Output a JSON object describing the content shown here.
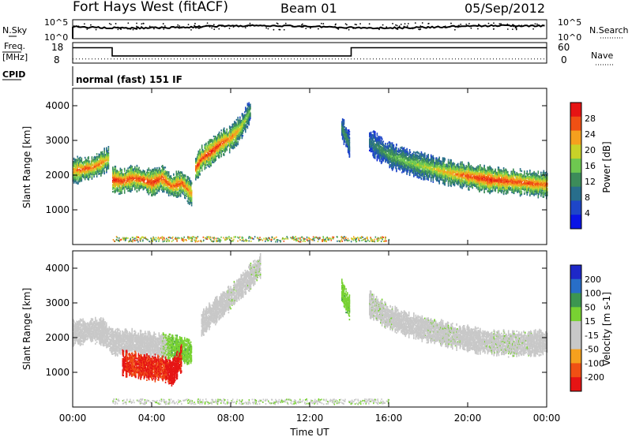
{
  "header": {
    "title": "Fort Hays West (fitACF)",
    "beam": "Beam 01",
    "date": "05/Sep/2012"
  },
  "top_panels": {
    "nsky_label": "N.Sky",
    "nsky_ticks": [
      "10^5",
      "10^0"
    ],
    "nsearch_label": "N.Search",
    "nsearch_ticks": [
      "10^5",
      "10^0"
    ],
    "freq_label_1": "Freq.",
    "freq_label_2": "[MHz]",
    "freq_ticks": [
      "18",
      "8"
    ],
    "nave_label": "Nave",
    "nave_ticks": [
      "60",
      "0"
    ],
    "cpid_label": "CPID",
    "cpid_text": "normal (fast) 151 IF"
  },
  "colors": {
    "power_scale": [
      "#0a14e6",
      "#1e46c8",
      "#286e8c",
      "#3c8c5a",
      "#6ec850",
      "#c8d228",
      "#f5a01e",
      "#f05014",
      "#e61414"
    ],
    "velocity_scale": [
      "#e61414",
      "#f05014",
      "#f5a01e",
      "#c8c8c8",
      "#c8c8c8",
      "#78d232",
      "#3c9650",
      "#286ec8",
      "#1e28c8"
    ]
  },
  "chart_data": [
    {
      "type": "heatmap",
      "panel": "power",
      "ylabel": "Slant Range [km]",
      "ylim": [
        0,
        4500
      ],
      "yticks": [
        "1000",
        "2000",
        "3000",
        "4000"
      ],
      "colorbar": {
        "label": "Power [dB]",
        "ticks": [
          "4",
          "8",
          "12",
          "16",
          "20",
          "24",
          "28"
        ],
        "range": [
          0,
          30
        ]
      },
      "series": [
        {
          "x": [
            0,
            0.5,
            1,
            1.5,
            1.8
          ],
          "y": [
            2150,
            2200,
            2250,
            2400,
            2500
          ],
          "values": [
            22,
            26,
            25,
            24,
            20
          ]
        },
        {
          "x": [
            2,
            2.5,
            3,
            3.5,
            4,
            4.5,
            5,
            5.5,
            6
          ],
          "y": [
            1900,
            1850,
            1950,
            1900,
            1800,
            1950,
            1700,
            1800,
            1500
          ],
          "values": [
            28,
            27,
            26,
            27,
            28,
            26,
            25,
            26,
            22
          ]
        },
        {
          "x": [
            6.2,
            6.5,
            7,
            7.5,
            8,
            8.5,
            9
          ],
          "y": [
            2200,
            2500,
            2700,
            2950,
            3100,
            3400,
            3900
          ],
          "values": [
            26,
            27,
            28,
            26,
            24,
            20,
            14
          ]
        },
        {
          "x": [
            13.6,
            13.8,
            14
          ],
          "y": [
            3400,
            3150,
            2900
          ],
          "values": [
            12,
            14,
            10
          ]
        },
        {
          "x": [
            15,
            15.5,
            16,
            17,
            18,
            19,
            20,
            21,
            22,
            23,
            24
          ],
          "y": [
            3000,
            2800,
            2600,
            2400,
            2250,
            2100,
            2000,
            1900,
            1850,
            1800,
            1750
          ],
          "values": [
            10,
            12,
            14,
            16,
            18,
            22,
            26,
            28,
            27,
            26,
            24
          ]
        }
      ],
      "xlim": [
        "00:00",
        "24:00"
      ]
    },
    {
      "type": "heatmap",
      "panel": "velocity",
      "ylabel": "Slant Range [km]",
      "ylim": [
        0,
        4500
      ],
      "yticks": [
        "1000",
        "2000",
        "3000",
        "4000"
      ],
      "colorbar": {
        "label": "Velocity [m s-1]",
        "ticks": [
          "-200",
          "-100",
          "-50",
          "-15",
          "15",
          "50",
          "100",
          "200"
        ],
        "range": [
          -250,
          250
        ]
      },
      "series": [
        {
          "x": [
            0,
            0.5,
            1,
            1.5,
            2,
            3,
            4,
            5,
            6
          ],
          "y": [
            2150,
            2200,
            2250,
            2200,
            1900,
            1900,
            1800,
            1750,
            1600
          ],
          "values": [
            -40,
            -45,
            -40,
            -45,
            -40,
            -50,
            -45,
            60,
            55
          ]
        },
        {
          "x": [
            6.5,
            7,
            7.5,
            8,
            8.5,
            9,
            9.5
          ],
          "y": [
            2400,
            2700,
            2950,
            3200,
            3500,
            3800,
            4100
          ],
          "values": [
            -40,
            -45,
            -10,
            5,
            -5,
            0,
            5
          ]
        },
        {
          "x": [
            13.6,
            13.8,
            14
          ],
          "y": [
            3400,
            3100,
            2900
          ],
          "values": [
            60,
            55,
            60
          ]
        },
        {
          "x": [
            15,
            16,
            17,
            18,
            19,
            20,
            21,
            22,
            23,
            24
          ],
          "y": [
            3000,
            2600,
            2400,
            2250,
            2100,
            2000,
            1900,
            1850,
            1850,
            1900
          ],
          "values": [
            5,
            0,
            -5,
            0,
            5,
            -5,
            0,
            5,
            0,
            -5
          ]
        },
        {
          "x": [
            2.5,
            3,
            3.5,
            4,
            4.5,
            5,
            5.5
          ],
          "y": [
            1300,
            1250,
            1200,
            1150,
            1150,
            1000,
            1450
          ],
          "values": [
            -220,
            -180,
            -210,
            -200,
            -190,
            -230,
            -210
          ]
        }
      ],
      "xlim": [
        "00:00",
        "24:00"
      ],
      "xticks": [
        "00:00",
        "04:00",
        "08:00",
        "12:00",
        "16:00",
        "20:00",
        "00:00"
      ],
      "xlabel": "Time UT"
    },
    {
      "type": "line",
      "panel": "frequency",
      "x": [
        0,
        2,
        2,
        14.1,
        14.1,
        24
      ],
      "values": [
        15.5,
        15.5,
        11.5,
        11.5,
        15.5,
        15.5
      ],
      "ylim": [
        8,
        18
      ]
    },
    {
      "type": "line",
      "panel": "nave",
      "x": [
        0,
        24
      ],
      "values": [
        12,
        12
      ],
      "ylim": [
        0,
        60
      ]
    }
  ]
}
